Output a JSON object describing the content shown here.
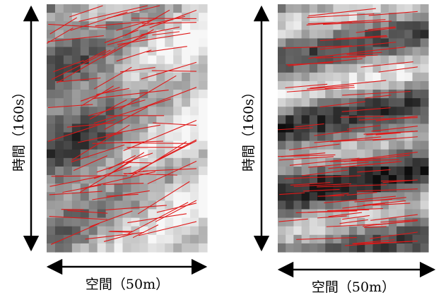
{
  "panels": [
    {
      "time_label": "時間（160s）",
      "space_label": "空間（50m）"
    },
    {
      "time_label": "時間（160s）",
      "space_label": "空間（50m）"
    }
  ]
}
